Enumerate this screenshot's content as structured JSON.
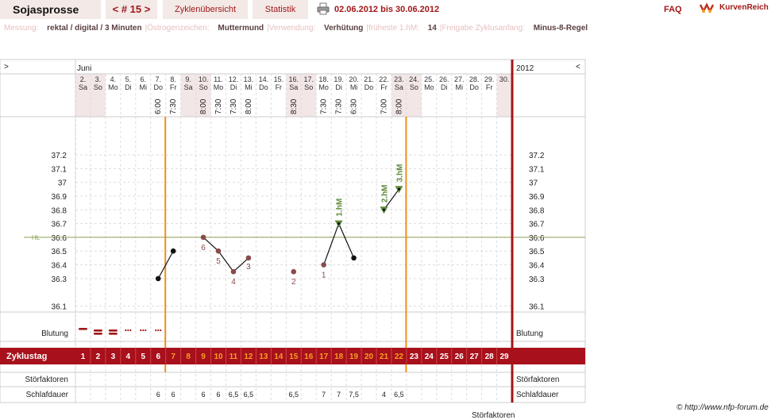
{
  "app": {
    "title": "Sojasprosse",
    "cycle_number": "< # 15 >",
    "tab_overview": "Zyklenübersicht",
    "tab_stats": "Statistik",
    "date_range": "02.06.2012 bis 30.06.2012",
    "faq": "FAQ",
    "brand": "KurvenReich",
    "copyright": "© http://www.nfp-forum.de",
    "bottom_cut_label": "Störfaktoren"
  },
  "info": [
    {
      "label": "Messung:",
      "value": "rektal / digital / 3 Minuten"
    },
    {
      "label": "Östrogenzeichen:",
      "value": "Muttermund"
    },
    {
      "label": "Verwendung:",
      "value": "Verhütung"
    },
    {
      "label": "früheste 1.hM:",
      "value": "14"
    },
    {
      "label": "Freigabe Zyklusanfang:",
      "value": "Minus-8-Regel"
    }
  ],
  "chart_data": {
    "type": "line",
    "month_label": "Juni",
    "year_label": "2012",
    "nav_left": ">",
    "nav_right": "<",
    "days": [
      {
        "date": "2.",
        "wd": "Sa",
        "time": "",
        "cycle": "1",
        "weekend": true
      },
      {
        "date": "3.",
        "wd": "So",
        "time": "",
        "cycle": "2",
        "weekend": true
      },
      {
        "date": "4.",
        "wd": "Mo",
        "time": "",
        "cycle": "3",
        "weekend": false
      },
      {
        "date": "5.",
        "wd": "Di",
        "time": "",
        "cycle": "4",
        "weekend": false
      },
      {
        "date": "6.",
        "wd": "Mi",
        "time": "",
        "cycle": "5",
        "weekend": false
      },
      {
        "date": "7.",
        "wd": "Do",
        "time": "6:00",
        "cycle": "6",
        "weekend": false
      },
      {
        "date": "8.",
        "wd": "Fr",
        "time": "7:30",
        "cycle": "7",
        "weekend": false
      },
      {
        "date": "9.",
        "wd": "Sa",
        "time": "",
        "cycle": "8",
        "weekend": true
      },
      {
        "date": "10.",
        "wd": "So",
        "time": "8:00",
        "cycle": "9",
        "weekend": true
      },
      {
        "date": "11.",
        "wd": "Mo",
        "time": "7:30",
        "cycle": "10",
        "weekend": false
      },
      {
        "date": "12.",
        "wd": "Di",
        "time": "7:30",
        "cycle": "11",
        "weekend": false
      },
      {
        "date": "13.",
        "wd": "Mi",
        "time": "8:00",
        "cycle": "12",
        "weekend": false
      },
      {
        "date": "14.",
        "wd": "Do",
        "time": "",
        "cycle": "13",
        "weekend": false
      },
      {
        "date": "15.",
        "wd": "Fr",
        "time": "",
        "cycle": "14",
        "weekend": false
      },
      {
        "date": "16.",
        "wd": "Sa",
        "time": "8:30",
        "cycle": "15",
        "weekend": true
      },
      {
        "date": "17.",
        "wd": "So",
        "time": "",
        "cycle": "16",
        "weekend": true
      },
      {
        "date": "18.",
        "wd": "Mo",
        "time": "7:30",
        "cycle": "17",
        "weekend": false
      },
      {
        "date": "19.",
        "wd": "Di",
        "time": "7:30",
        "cycle": "18",
        "weekend": false
      },
      {
        "date": "20.",
        "wd": "Mi",
        "time": "6:30",
        "cycle": "19",
        "weekend": false
      },
      {
        "date": "21.",
        "wd": "Do",
        "time": "",
        "cycle": "20",
        "weekend": false
      },
      {
        "date": "22.",
        "wd": "Fr",
        "time": "7:00",
        "cycle": "21",
        "weekend": false
      },
      {
        "date": "23.",
        "wd": "Sa",
        "time": "8:00",
        "cycle": "22",
        "weekend": true
      },
      {
        "date": "24.",
        "wd": "So",
        "time": "",
        "cycle": "23",
        "weekend": true
      },
      {
        "date": "25.",
        "wd": "Mo",
        "time": "",
        "cycle": "24",
        "weekend": false
      },
      {
        "date": "26.",
        "wd": "Di",
        "time": "",
        "cycle": "25",
        "weekend": false
      },
      {
        "date": "27.",
        "wd": "Mi",
        "time": "",
        "cycle": "26",
        "weekend": false
      },
      {
        "date": "28.",
        "wd": "Do",
        "time": "",
        "cycle": "27",
        "weekend": false
      },
      {
        "date": "29.",
        "wd": "Fr",
        "time": "",
        "cycle": "28",
        "weekend": false
      },
      {
        "date": "30.",
        "wd": "",
        "time": "",
        "cycle": "29",
        "weekend": true
      }
    ],
    "y_ticks": [
      "37.2",
      "37.1",
      "37",
      "36.9",
      "36.8",
      "36.7",
      "36.6",
      "36.5",
      "36.4",
      "36.3",
      "36.1"
    ],
    "y_tick_values": [
      37.2,
      37.1,
      37.0,
      36.9,
      36.8,
      36.7,
      36.6,
      36.5,
      36.4,
      36.3,
      36.1
    ],
    "ylim": [
      36.0,
      37.3
    ],
    "hl_label": "HL",
    "hl_value": 36.6,
    "temperatures": [
      {
        "cycle": 6,
        "value": 36.3,
        "style": "normal",
        "label": ""
      },
      {
        "cycle": 7,
        "value": 36.5,
        "style": "normal",
        "label": ""
      },
      {
        "cycle": 9,
        "value": 36.6,
        "style": "low",
        "label": "6"
      },
      {
        "cycle": 10,
        "value": 36.5,
        "style": "low",
        "label": "5"
      },
      {
        "cycle": 11,
        "value": 36.35,
        "style": "low",
        "label": "4"
      },
      {
        "cycle": 12,
        "value": 36.45,
        "style": "low",
        "label": "3"
      },
      {
        "cycle": 15,
        "value": 36.35,
        "style": "low",
        "label": "2"
      },
      {
        "cycle": 17,
        "value": 36.4,
        "style": "low",
        "label": "1"
      },
      {
        "cycle": 18,
        "value": 36.7,
        "style": "high",
        "label": "1.hM"
      },
      {
        "cycle": 19,
        "value": 36.45,
        "style": "normal",
        "label": ""
      },
      {
        "cycle": 21,
        "value": 36.8,
        "style": "high",
        "label": "2.hM"
      },
      {
        "cycle": 22,
        "value": 36.95,
        "style": "high",
        "label": "3.hM"
      }
    ],
    "connected_segments": [
      [
        6,
        7
      ],
      [
        9,
        10
      ],
      [
        10,
        11
      ],
      [
        11,
        12
      ],
      [
        17,
        18
      ],
      [
        18,
        19
      ],
      [
        21,
        22
      ]
    ],
    "markers": {
      "left_cycle": 6,
      "right_cycle": 22
    },
    "bleeding": [
      {
        "cycle": 1,
        "type": "heavy"
      },
      {
        "cycle": 2,
        "type": "heavy"
      },
      {
        "cycle": 3,
        "type": "heavy"
      },
      {
        "cycle": 4,
        "type": "light"
      },
      {
        "cycle": 5,
        "type": "light"
      },
      {
        "cycle": 6,
        "type": "light"
      }
    ],
    "row_labels": {
      "bleeding": "Blutung",
      "cycle_day": "Zyklustag",
      "disturb": "Störfaktoren",
      "sleep": "Schlafdauer"
    },
    "sleep": [
      {
        "cycle": 6,
        "value": "6"
      },
      {
        "cycle": 7,
        "value": "6"
      },
      {
        "cycle": 9,
        "value": "6"
      },
      {
        "cycle": 10,
        "value": "6"
      },
      {
        "cycle": 11,
        "value": "6,5"
      },
      {
        "cycle": 12,
        "value": "6,5"
      },
      {
        "cycle": 15,
        "value": "6,5"
      },
      {
        "cycle": 17,
        "value": "7"
      },
      {
        "cycle": 18,
        "value": "7"
      },
      {
        "cycle": 19,
        "value": "7,5"
      },
      {
        "cycle": 21,
        "value": "4"
      },
      {
        "cycle": 22,
        "value": "6,5"
      }
    ],
    "colors": {
      "accent": "#a01818",
      "orange_line": "#f0901c",
      "hl_line": "#8aa050",
      "high_marker": "#5d8a3a",
      "low_point": "#8b4a4a",
      "weekend_bg": "#f2e6e6",
      "cycle_day_bg": "#a8101c",
      "cycle_day_hl": "#f5a020"
    }
  }
}
